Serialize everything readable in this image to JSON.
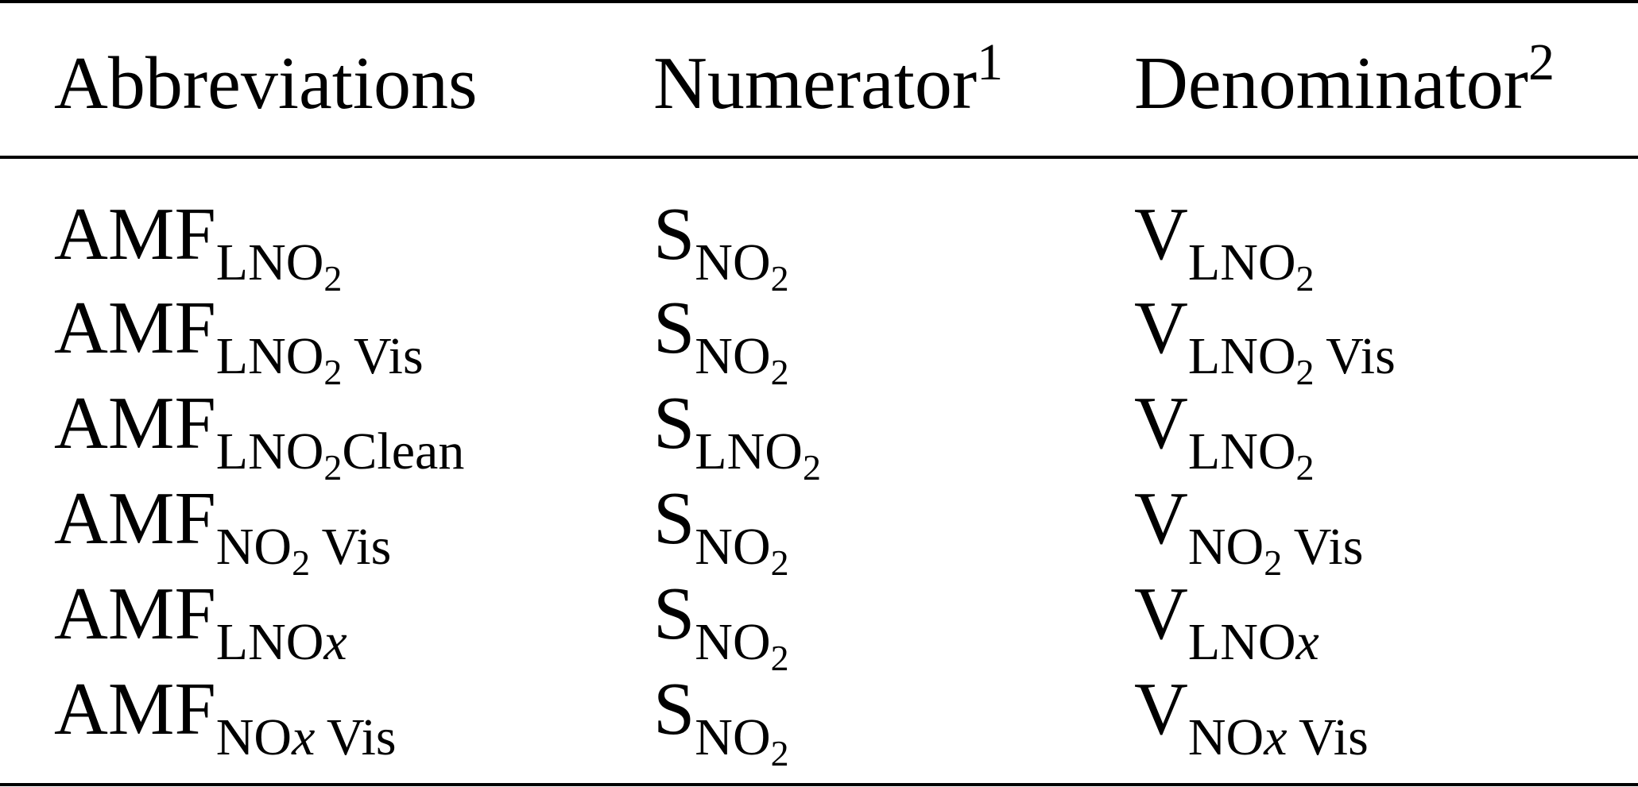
{
  "header": {
    "col1": "Abbreviations",
    "col2": "Numerator",
    "col2_footnote": "1",
    "col3": "Denominator",
    "col3_footnote": "2"
  },
  "rows": [
    {
      "abbr": {
        "base": "AMF",
        "sub_a": "LNO",
        "sub_b": "2",
        "sub_c": ""
      },
      "num": {
        "base": "S",
        "sub_a": "NO",
        "sub_b": "2"
      },
      "den": {
        "base": "V",
        "sub_a": "LNO",
        "sub_b": "2",
        "sub_c": ""
      }
    },
    {
      "abbr": {
        "base": "AMF",
        "sub_a": "LNO",
        "sub_b": "2",
        "sub_c": "Vis"
      },
      "num": {
        "base": "S",
        "sub_a": "NO",
        "sub_b": "2"
      },
      "den": {
        "base": "V",
        "sub_a": "LNO",
        "sub_b": "2",
        "sub_c": "Vis"
      }
    },
    {
      "abbr": {
        "base": "AMF",
        "sub_a": "LNO",
        "sub_b": "2",
        "sub_c": "Clean"
      },
      "num": {
        "base": "S",
        "sub_a": "LNO",
        "sub_b": "2"
      },
      "den": {
        "base": "V",
        "sub_a": "LNO",
        "sub_b": "2",
        "sub_c": ""
      }
    },
    {
      "abbr": {
        "base": "AMF",
        "sub_a": "NO",
        "sub_b": "2",
        "sub_c": "Vis"
      },
      "num": {
        "base": "S",
        "sub_a": "NO",
        "sub_b": "2"
      },
      "den": {
        "base": "V",
        "sub_a": "NO",
        "sub_b": "2",
        "sub_c": "Vis"
      }
    },
    {
      "abbr": {
        "base": "AMF",
        "sub_a": "LNO",
        "sub_x": "x",
        "sub_c": ""
      },
      "num": {
        "base": "S",
        "sub_a": "NO",
        "sub_b": "2"
      },
      "den": {
        "base": "V",
        "sub_a": "LNO",
        "sub_x": "x",
        "sub_c": ""
      }
    },
    {
      "abbr": {
        "base": "AMF",
        "sub_a": "NO",
        "sub_x": "x",
        "sub_c": "Vis"
      },
      "num": {
        "base": "S",
        "sub_a": "NO",
        "sub_b": "2"
      },
      "den": {
        "base": "V",
        "sub_a": "NO",
        "sub_x": "x",
        "sub_c": "Vis"
      }
    }
  ]
}
